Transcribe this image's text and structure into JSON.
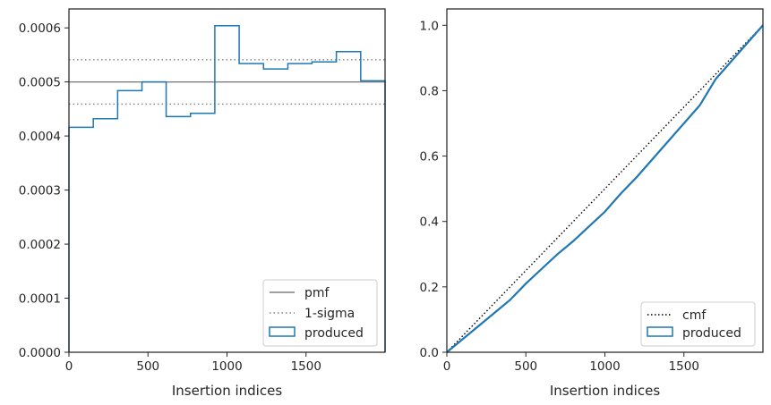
{
  "colors": {
    "produced": "#1f77b4",
    "pmf": "#808080",
    "sigma": "#808080",
    "cmf": "#000000",
    "axis": "#262626"
  },
  "chart_data": [
    {
      "type": "histogram-step",
      "xlabel": "Insertion indices",
      "ylabel": "",
      "xlim": [
        0,
        2000
      ],
      "ylim": [
        0,
        0.000635
      ],
      "xticks": [
        0,
        500,
        1000,
        1500
      ],
      "xtick_labels": [
        "0",
        "500",
        "1000",
        "1500"
      ],
      "yticks": [
        0,
        0.0001,
        0.0002,
        0.0003,
        0.0004,
        0.0005,
        0.0006
      ],
      "ytick_labels": [
        "0.0000",
        "0.0001",
        "0.0002",
        "0.0003",
        "0.0004",
        "0.0005",
        "0.0006"
      ],
      "bin_edges": [
        0,
        154,
        308,
        462,
        615,
        769,
        923,
        1077,
        1231,
        1385,
        1538,
        1692,
        1846,
        2000
      ],
      "series": [
        {
          "name": "produced",
          "values": [
            0.000416,
            0.000432,
            0.000484,
            0.0005,
            0.000436,
            0.000442,
            0.000604,
            0.000534,
            0.000524,
            0.000534,
            0.000537,
            0.000556,
            0.000502
          ]
        }
      ],
      "reference_lines": [
        {
          "name": "pmf",
          "y": 0.0005,
          "style": "solid"
        },
        {
          "name": "1-sigma",
          "y": 0.000541,
          "style": "dotted"
        },
        {
          "name": "",
          "y": 0.000459,
          "style": "dotted"
        }
      ],
      "legend": {
        "position": "lower-right",
        "entries": [
          {
            "label": "pmf",
            "kind": "solid-line"
          },
          {
            "label": "1-sigma",
            "kind": "dotted-line"
          },
          {
            "label": "produced",
            "kind": "patch"
          }
        ]
      }
    },
    {
      "type": "line",
      "xlabel": "Insertion indices",
      "ylabel": "",
      "xlim": [
        0,
        2000
      ],
      "ylim": [
        0,
        1.05
      ],
      "xticks": [
        0,
        500,
        1000,
        1500
      ],
      "xtick_labels": [
        "0",
        "500",
        "1000",
        "1500"
      ],
      "yticks": [
        0,
        0.2,
        0.4,
        0.6,
        0.8,
        1.0
      ],
      "ytick_labels": [
        "0.0",
        "0.2",
        "0.4",
        "0.6",
        "0.8",
        "1.0"
      ],
      "series": [
        {
          "name": "cmf",
          "style": "dotted",
          "x": [
            0,
            2000
          ],
          "y": [
            0,
            1
          ]
        },
        {
          "name": "produced",
          "style": "solid",
          "x": [
            0,
            100,
            200,
            300,
            400,
            500,
            600,
            700,
            800,
            900,
            1000,
            1100,
            1200,
            1300,
            1400,
            1500,
            1600,
            1700,
            1800,
            1900,
            2000
          ],
          "y": [
            0,
            0.04,
            0.08,
            0.12,
            0.16,
            0.21,
            0.255,
            0.3,
            0.34,
            0.385,
            0.43,
            0.485,
            0.535,
            0.59,
            0.645,
            0.7,
            0.755,
            0.835,
            0.89,
            0.945,
            1.0
          ]
        }
      ],
      "legend": {
        "position": "lower-right",
        "entries": [
          {
            "label": "cmf",
            "kind": "dotted-line"
          },
          {
            "label": "produced",
            "kind": "patch"
          }
        ]
      }
    }
  ]
}
